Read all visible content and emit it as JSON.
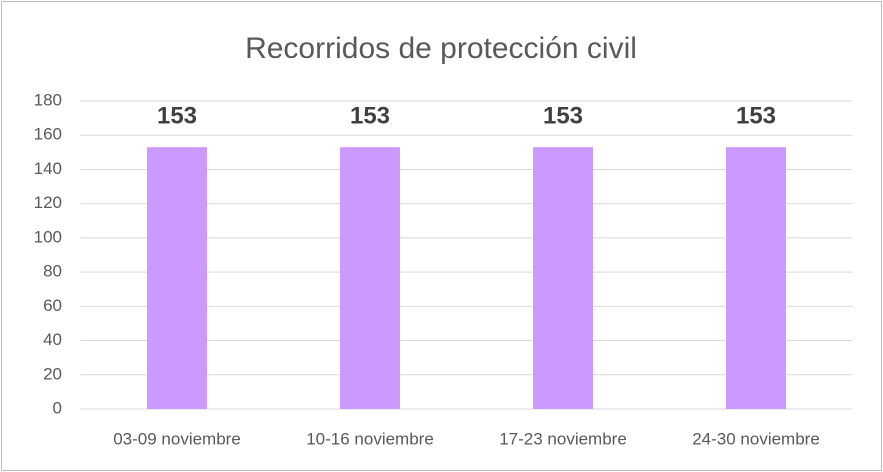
{
  "chart_data": {
    "type": "bar",
    "title": "Recorridos de protección civil",
    "categories": [
      "03-09 noviembre",
      "10-16 noviembre",
      "17-23 noviembre",
      "24-30 noviembre"
    ],
    "values": [
      153,
      153,
      153,
      153
    ],
    "color": "#cc99ff",
    "ylim": [
      0,
      180
    ],
    "yticks": [
      0,
      20,
      40,
      60,
      80,
      100,
      120,
      140,
      160,
      180
    ],
    "grid": true
  }
}
